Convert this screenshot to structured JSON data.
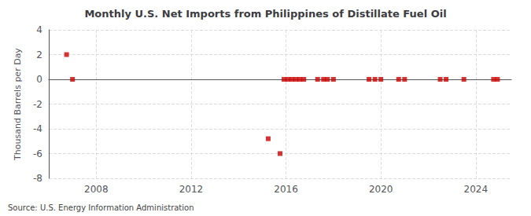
{
  "chart_data": {
    "type": "scatter",
    "title": "Monthly U.S. Net Imports from Philippines of Distillate Fuel Oil",
    "ylabel": "Thousand Barrels per Day",
    "annotation": "Source: U.S. Energy Information Administration",
    "x": [
      2006.75,
      2007.0,
      2015.25,
      2015.75,
      2015.917,
      2016.083,
      2016.25,
      2016.417,
      2016.583,
      2016.75,
      2017.333,
      2017.583,
      2017.75,
      2018.0,
      2019.5,
      2019.75,
      2020.0,
      2020.75,
      2021.0,
      2022.5,
      2022.75,
      2023.5,
      2024.75,
      2024.917
    ],
    "values": [
      2,
      0,
      -4.8,
      -6.0,
      0,
      0,
      0,
      0,
      0,
      0,
      0,
      0,
      0,
      0,
      0,
      0,
      0,
      0,
      0,
      0,
      0,
      0,
      0,
      0
    ],
    "color": "#cc0000",
    "marker": "square",
    "xlim": [
      2006.0,
      2025.5
    ],
    "xticks": [
      2008,
      2012,
      2016,
      2020,
      2024
    ],
    "ylim": [
      -8,
      4
    ],
    "yticks": [
      -8,
      -6,
      -4,
      -2,
      0,
      2,
      4
    ],
    "grid": true
  }
}
